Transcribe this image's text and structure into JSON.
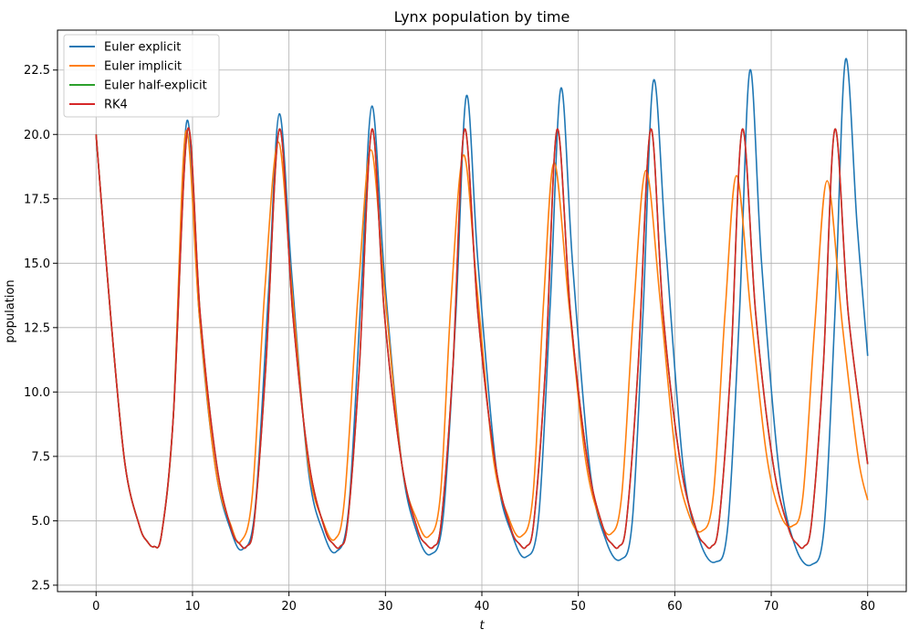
{
  "chart_data": {
    "type": "line",
    "title": "Lynx population by time",
    "xlabel": "t",
    "ylabel": "population",
    "xlim": [
      -4,
      84
    ],
    "ylim": [
      2.25,
      24.05
    ],
    "xticks": [
      0,
      10,
      20,
      30,
      40,
      50,
      60,
      70,
      80
    ],
    "xtick_labels": [
      "0",
      "10",
      "20",
      "30",
      "40",
      "50",
      "60",
      "70",
      "80"
    ],
    "yticks": [
      2.5,
      5.0,
      7.5,
      10.0,
      12.5,
      15.0,
      17.5,
      20.0,
      22.5
    ],
    "ytick_labels": [
      "2.5",
      "5.0",
      "7.5",
      "10.0",
      "12.5",
      "15.0",
      "17.5",
      "20.0",
      "22.5"
    ],
    "grid": true,
    "legend": "top-left",
    "series": [
      {
        "name": "Euler explicit",
        "color": "#1f77b4",
        "x": [
          0,
          1.5,
          3,
          4.5,
          5.3,
          6,
          6.8,
          8,
          9.4,
          10.7,
          12.4,
          14,
          15.2,
          16.5,
          17.9,
          19.0,
          20.3,
          22,
          23.6,
          24.9,
          26.2,
          27.5,
          28.6,
          29.9,
          31.7,
          33.3,
          34.7,
          36.0,
          37.3,
          38.4,
          39.6,
          41.5,
          43.2,
          44.6,
          45.9,
          47.1,
          48.2,
          49.4,
          51.2,
          52.9,
          54.4,
          55.6,
          56.7,
          57.8,
          59.1,
          60.9,
          62.6,
          64.2,
          65.5,
          66.7,
          67.8,
          69.0,
          70.8,
          72.5,
          74.2,
          75.5,
          76.6,
          77.7,
          78.9,
          80
        ],
        "y": [
          20.0,
          13.0,
          7.2,
          4.8,
          4.2,
          4.0,
          4.5,
          9.0,
          20.5,
          13.0,
          7.0,
          4.6,
          3.9,
          5.5,
          14.0,
          20.8,
          14.5,
          7.0,
          4.5,
          3.8,
          5.5,
          14.0,
          21.1,
          14.5,
          7.2,
          4.5,
          3.7,
          5.2,
          13.0,
          21.5,
          15.0,
          7.0,
          4.4,
          3.6,
          5.2,
          13.5,
          21.8,
          15.0,
          7.0,
          4.2,
          3.5,
          5.0,
          13.0,
          22.1,
          15.5,
          7.0,
          4.2,
          3.4,
          4.8,
          13.0,
          22.5,
          15.0,
          7.0,
          4.0,
          3.3,
          4.8,
          13.0,
          22.9,
          16.5,
          11.4
        ]
      },
      {
        "name": "Euler implicit",
        "color": "#ff7f0e",
        "x": [
          0,
          1.5,
          3,
          4.5,
          5.3,
          6,
          6.8,
          8,
          9.3,
          10.7,
          12.4,
          14,
          15.0,
          16.2,
          17.5,
          18.9,
          20.3,
          22,
          23.6,
          24.8,
          25.8,
          27.2,
          28.5,
          29.9,
          31.7,
          33.3,
          34.5,
          35.7,
          36.8,
          38.1,
          39.5,
          41.2,
          42.8,
          44.1,
          45.3,
          46.4,
          47.5,
          49.0,
          50.7,
          52.2,
          53.4,
          54.5,
          55.7,
          57.0,
          58.5,
          60.1,
          61.5,
          62.8,
          64.0,
          65.2,
          66.4,
          67.9,
          69.5,
          70.9,
          72.2,
          73.3,
          74.5,
          75.8,
          77.4,
          79.0,
          80
        ],
        "y": [
          20.0,
          13.0,
          7.2,
          4.8,
          4.2,
          4.0,
          4.5,
          9.0,
          20.1,
          13.0,
          7.0,
          4.8,
          4.2,
          6.0,
          14.0,
          19.7,
          14.0,
          7.2,
          4.9,
          4.3,
          6.0,
          14.0,
          19.4,
          14.0,
          7.2,
          5.0,
          4.4,
          6.0,
          13.5,
          19.2,
          14.0,
          7.4,
          5.1,
          4.4,
          6.0,
          13.5,
          18.9,
          13.5,
          7.5,
          5.1,
          4.5,
          6.0,
          13.0,
          18.6,
          13.5,
          7.5,
          5.2,
          4.6,
          6.0,
          13.0,
          18.4,
          13.0,
          7.6,
          5.3,
          4.8,
          6.0,
          12.5,
          18.2,
          12.5,
          7.5,
          5.8
        ]
      },
      {
        "name": "Euler half-explicit",
        "color": "#2ca02c",
        "x": [
          0,
          1.5,
          3,
          4.5,
          5.3,
          6,
          6.8,
          8,
          9.5,
          10.8,
          12.5,
          14,
          14.9,
          15.6,
          16.4,
          17.6,
          19.0,
          20.4,
          22.1,
          23.7,
          24.6,
          25.3,
          26.1,
          27.3,
          28.6,
          29.9,
          31.7,
          33.3,
          34.2,
          35.0,
          35.8,
          37.0,
          38.2,
          39.6,
          41.4,
          43.0,
          43.9,
          44.6,
          45.4,
          46.6,
          47.8,
          49.2,
          51.0,
          52.6,
          53.5,
          54.2,
          55.0,
          56.2,
          57.5,
          58.8,
          60.6,
          62.2,
          63.1,
          63.8,
          64.6,
          65.8,
          67.0,
          68.4,
          70.2,
          71.8,
          72.7,
          73.4,
          74.2,
          75.4,
          76.6,
          78.0,
          80
        ],
        "y": [
          20.0,
          13.0,
          7.2,
          4.8,
          4.2,
          4.0,
          4.5,
          9.0,
          20.2,
          13.0,
          7.2,
          4.7,
          4.1,
          4.0,
          5.0,
          11.0,
          20.2,
          13.0,
          7.2,
          4.7,
          4.1,
          4.0,
          5.0,
          11.0,
          20.2,
          13.0,
          7.2,
          4.7,
          4.1,
          4.0,
          5.0,
          11.0,
          20.2,
          13.0,
          7.2,
          4.7,
          4.1,
          4.0,
          5.0,
          11.0,
          20.2,
          13.0,
          7.2,
          4.7,
          4.1,
          4.0,
          5.0,
          11.0,
          20.2,
          13.0,
          7.2,
          4.7,
          4.1,
          4.0,
          5.0,
          11.0,
          20.2,
          13.0,
          7.2,
          4.7,
          4.1,
          4.0,
          5.0,
          11.0,
          20.2,
          13.0,
          7.2
        ]
      },
      {
        "name": "RK4",
        "color": "#d62728",
        "x": [
          0,
          1.5,
          3,
          4.5,
          5.3,
          6,
          6.8,
          8,
          9.5,
          10.8,
          12.5,
          14,
          14.9,
          15.6,
          16.4,
          17.6,
          19.0,
          20.4,
          22.1,
          23.7,
          24.6,
          25.3,
          26.1,
          27.3,
          28.6,
          29.9,
          31.7,
          33.3,
          34.2,
          35.0,
          35.8,
          37.0,
          38.2,
          39.6,
          41.4,
          43.0,
          43.9,
          44.6,
          45.4,
          46.6,
          47.8,
          49.2,
          51.0,
          52.6,
          53.5,
          54.2,
          55.0,
          56.2,
          57.5,
          58.8,
          60.6,
          62.2,
          63.1,
          63.8,
          64.6,
          65.8,
          67.0,
          68.4,
          70.2,
          71.8,
          72.7,
          73.4,
          74.2,
          75.4,
          76.6,
          78.0,
          80
        ],
        "y": [
          20.0,
          13.0,
          7.2,
          4.8,
          4.2,
          4.0,
          4.5,
          9.0,
          20.2,
          13.0,
          7.2,
          4.7,
          4.1,
          4.0,
          5.0,
          11.0,
          20.2,
          13.0,
          7.2,
          4.7,
          4.1,
          4.0,
          5.0,
          11.0,
          20.2,
          13.0,
          7.2,
          4.7,
          4.1,
          4.0,
          5.0,
          11.0,
          20.2,
          13.0,
          7.2,
          4.7,
          4.1,
          4.0,
          5.0,
          11.0,
          20.2,
          13.0,
          7.2,
          4.7,
          4.1,
          4.0,
          5.0,
          11.0,
          20.2,
          13.0,
          7.2,
          4.7,
          4.1,
          4.0,
          5.0,
          11.0,
          20.2,
          13.0,
          7.2,
          4.7,
          4.1,
          4.0,
          5.0,
          11.0,
          20.2,
          13.0,
          7.2
        ]
      }
    ]
  }
}
